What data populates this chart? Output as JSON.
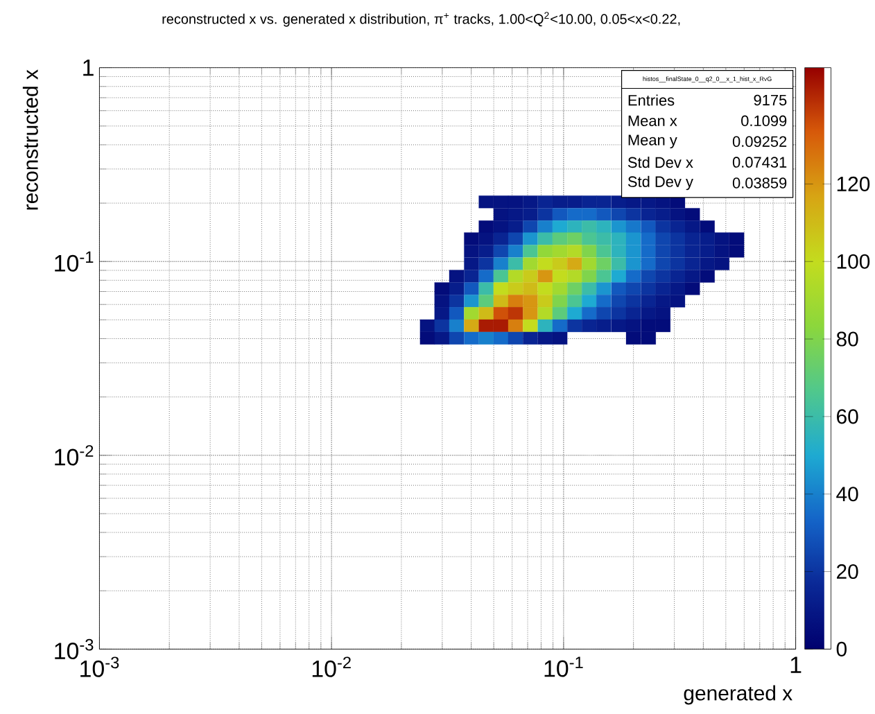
{
  "chart_data": {
    "type": "scatter",
    "title": "reconstructed x vs. generated x distribution, π$^{+}$ tracks, 1.00<Q$^{2}$<10.00, 0.05<x<0.22,",
    "xlabel": "generated x",
    "ylabel": "reconstructed x",
    "log": "xy",
    "grid": true,
    "marker": "square",
    "xlim": [
      0.001,
      1
    ],
    "ylim": [
      0.001,
      1
    ],
    "xticks": [
      {
        "value": 0.001,
        "label": "10$^{-3}$"
      },
      {
        "value": 0.01,
        "label": "10$^{-2}$"
      },
      {
        "value": 0.1,
        "label": "10$^{-1}$"
      },
      1
    ],
    "yticks": [
      {
        "value": 0.001,
        "label": "10$^{-3}$"
      },
      {
        "value": 0.01,
        "label": "10$^{-2}$"
      },
      {
        "value": 0.1,
        "label": "10$^{-1}$"
      },
      1
    ],
    "clim": [
      0,
      150
    ],
    "cticks": [
      0,
      20,
      40,
      60,
      80,
      100,
      120
    ],
    "annotations": [
      "histos__finalState_0__q2_0__x_1_hist_x_RvG",
      "Entries",
      "9175",
      "Mean x",
      "0.1099",
      "Mean y",
      "0.09252",
      "Std Dev x",
      "0.07431",
      "Std Dev y",
      "0.03859"
    ],
    "series": [
      {
        "x": [
          0.0464,
          0.0537,
          0.0621,
          0.0719,
          0.0833,
          0.0964,
          0.1116,
          0.129,
          0.149,
          0.173,
          0.2,
          0.232,
          0.268,
          0.31,
          0.0537,
          0.0621,
          0.0719,
          0.0833,
          0.0964,
          0.1116,
          0.129,
          0.149,
          0.173,
          0.2,
          0.232,
          0.268,
          0.31,
          0.359,
          0.0464,
          0.0537,
          0.0621,
          0.0719,
          0.0833,
          0.0964,
          0.1116,
          0.129,
          0.149,
          0.173,
          0.2,
          0.232,
          0.268,
          0.31,
          0.359,
          0.416,
          0.0401,
          0.0464,
          0.0537,
          0.0621,
          0.0719,
          0.0833,
          0.0964,
          0.1116,
          0.129,
          0.149,
          0.173,
          0.2,
          0.232,
          0.268,
          0.31,
          0.359,
          0.416,
          0.481,
          0.557,
          0.0401,
          0.0464,
          0.0537,
          0.0621,
          0.0719,
          0.0833,
          0.0964,
          0.1116,
          0.129,
          0.149,
          0.173,
          0.2,
          0.232,
          0.268,
          0.31,
          0.359,
          0.416,
          0.481,
          0.557,
          0.0401,
          0.0464,
          0.0537,
          0.0621,
          0.0719,
          0.0833,
          0.0964,
          0.1116,
          0.129,
          0.149,
          0.173,
          0.2,
          0.232,
          0.268,
          0.31,
          0.359,
          0.416,
          0.481,
          0.0346,
          0.0401,
          0.0464,
          0.0537,
          0.0621,
          0.0719,
          0.0833,
          0.0964,
          0.1116,
          0.129,
          0.149,
          0.173,
          0.2,
          0.232,
          0.268,
          0.31,
          0.359,
          0.416,
          0.0299,
          0.0346,
          0.0401,
          0.0464,
          0.0537,
          0.0621,
          0.0719,
          0.0833,
          0.0964,
          0.1116,
          0.129,
          0.149,
          0.173,
          0.2,
          0.232,
          0.268,
          0.31,
          0.359,
          0.0299,
          0.0346,
          0.0401,
          0.0464,
          0.0537,
          0.0621,
          0.0719,
          0.0833,
          0.0964,
          0.1116,
          0.129,
          0.149,
          0.173,
          0.2,
          0.232,
          0.268,
          0.31,
          0.0299,
          0.0346,
          0.0401,
          0.0464,
          0.0537,
          0.0621,
          0.0719,
          0.0833,
          0.0964,
          0.1116,
          0.129,
          0.149,
          0.173,
          0.2,
          0.232,
          0.268,
          0.0259,
          0.0299,
          0.0346,
          0.0401,
          0.0464,
          0.0537,
          0.0621,
          0.0719,
          0.0833,
          0.0964,
          0.1116,
          0.129,
          0.149,
          0.173,
          0.2,
          0.232,
          0.268,
          0.0259,
          0.0299,
          0.0346,
          0.0401,
          0.0464,
          0.0537,
          0.0621,
          0.0719,
          0.0833,
          0.0964,
          0.2,
          0.232
        ],
        "values": [
          0.203,
          0.203,
          0.203,
          0.203,
          0.203,
          0.203,
          0.203,
          0.203,
          0.203,
          0.203,
          0.203,
          0.203,
          0.203,
          0.203,
          0.175,
          0.175,
          0.175,
          0.175,
          0.175,
          0.175,
          0.175,
          0.175,
          0.175,
          0.175,
          0.175,
          0.175,
          0.175,
          0.175,
          0.151,
          0.151,
          0.151,
          0.151,
          0.151,
          0.151,
          0.151,
          0.151,
          0.151,
          0.151,
          0.151,
          0.151,
          0.151,
          0.151,
          0.151,
          0.151,
          0.131,
          0.131,
          0.131,
          0.131,
          0.131,
          0.131,
          0.131,
          0.131,
          0.131,
          0.131,
          0.131,
          0.131,
          0.131,
          0.131,
          0.131,
          0.131,
          0.131,
          0.131,
          0.131,
          0.113,
          0.113,
          0.113,
          0.113,
          0.113,
          0.113,
          0.113,
          0.113,
          0.113,
          0.113,
          0.113,
          0.113,
          0.113,
          0.113,
          0.113,
          0.113,
          0.113,
          0.113,
          0.113,
          0.0973,
          0.0973,
          0.0973,
          0.0973,
          0.0973,
          0.0973,
          0.0973,
          0.0973,
          0.0973,
          0.0973,
          0.0973,
          0.0973,
          0.0973,
          0.0973,
          0.0973,
          0.0973,
          0.0973,
          0.0973,
          0.0839,
          0.0839,
          0.0839,
          0.0839,
          0.0839,
          0.0839,
          0.0839,
          0.0839,
          0.0839,
          0.0839,
          0.0839,
          0.0839,
          0.0839,
          0.0839,
          0.0839,
          0.0839,
          0.0839,
          0.0839,
          0.0724,
          0.0724,
          0.0724,
          0.0724,
          0.0724,
          0.0724,
          0.0724,
          0.0724,
          0.0724,
          0.0724,
          0.0724,
          0.0724,
          0.0724,
          0.0724,
          0.0724,
          0.0724,
          0.0724,
          0.0724,
          0.0625,
          0.0625,
          0.0625,
          0.0625,
          0.0625,
          0.0625,
          0.0625,
          0.0625,
          0.0625,
          0.0625,
          0.0625,
          0.0625,
          0.0625,
          0.0625,
          0.0625,
          0.0625,
          0.0625,
          0.054,
          0.054,
          0.054,
          0.054,
          0.054,
          0.054,
          0.054,
          0.054,
          0.054,
          0.054,
          0.054,
          0.054,
          0.054,
          0.054,
          0.054,
          0.054,
          0.0466,
          0.0466,
          0.0466,
          0.0466,
          0.0466,
          0.0466,
          0.0466,
          0.0466,
          0.0466,
          0.0466,
          0.0466,
          0.0466,
          0.0466,
          0.0466,
          0.0466,
          0.0466,
          0.0466,
          0.0402,
          0.0402,
          0.0402,
          0.0402,
          0.0402,
          0.0402,
          0.0402,
          0.0402,
          0.0402,
          0.0402,
          0.0402,
          0.0402
        ],
        "cvalues": [
          8,
          8,
          8,
          10,
          15,
          12,
          12,
          15,
          15,
          12,
          10,
          10,
          8,
          5,
          8,
          10,
          12,
          20,
          30,
          35,
          35,
          30,
          25,
          20,
          15,
          12,
          8,
          5,
          5,
          8,
          12,
          25,
          40,
          50,
          55,
          60,
          55,
          45,
          38,
          30,
          20,
          15,
          10,
          5,
          5,
          8,
          15,
          25,
          45,
          60,
          70,
          75,
          65,
          60,
          55,
          45,
          35,
          25,
          20,
          15,
          12,
          8,
          5,
          8,
          12,
          25,
          40,
          65,
          85,
          90,
          95,
          80,
          65,
          55,
          45,
          35,
          25,
          20,
          15,
          12,
          8,
          5,
          10,
          20,
          40,
          60,
          90,
          100,
          105,
          115,
          90,
          75,
          60,
          45,
          35,
          25,
          20,
          15,
          10,
          8,
          8,
          15,
          35,
          65,
          95,
          105,
          120,
          100,
          95,
          80,
          65,
          50,
          35,
          25,
          20,
          15,
          10,
          5,
          5,
          12,
          30,
          60,
          100,
          105,
          110,
          100,
          90,
          75,
          60,
          45,
          30,
          25,
          20,
          15,
          10,
          5,
          8,
          20,
          45,
          70,
          110,
          125,
          120,
          105,
          80,
          65,
          50,
          35,
          25,
          20,
          15,
          10,
          8,
          10,
          30,
          90,
          110,
          135,
          140,
          120,
          95,
          70,
          50,
          35,
          25,
          20,
          15,
          10,
          8,
          8,
          20,
          40,
          115,
          145,
          145,
          125,
          100,
          55,
          35,
          20,
          15,
          12,
          10,
          8,
          5,
          5,
          5,
          10,
          25,
          35,
          40,
          35,
          25,
          15,
          10,
          8,
          5,
          5
        ]
      }
    ]
  }
}
